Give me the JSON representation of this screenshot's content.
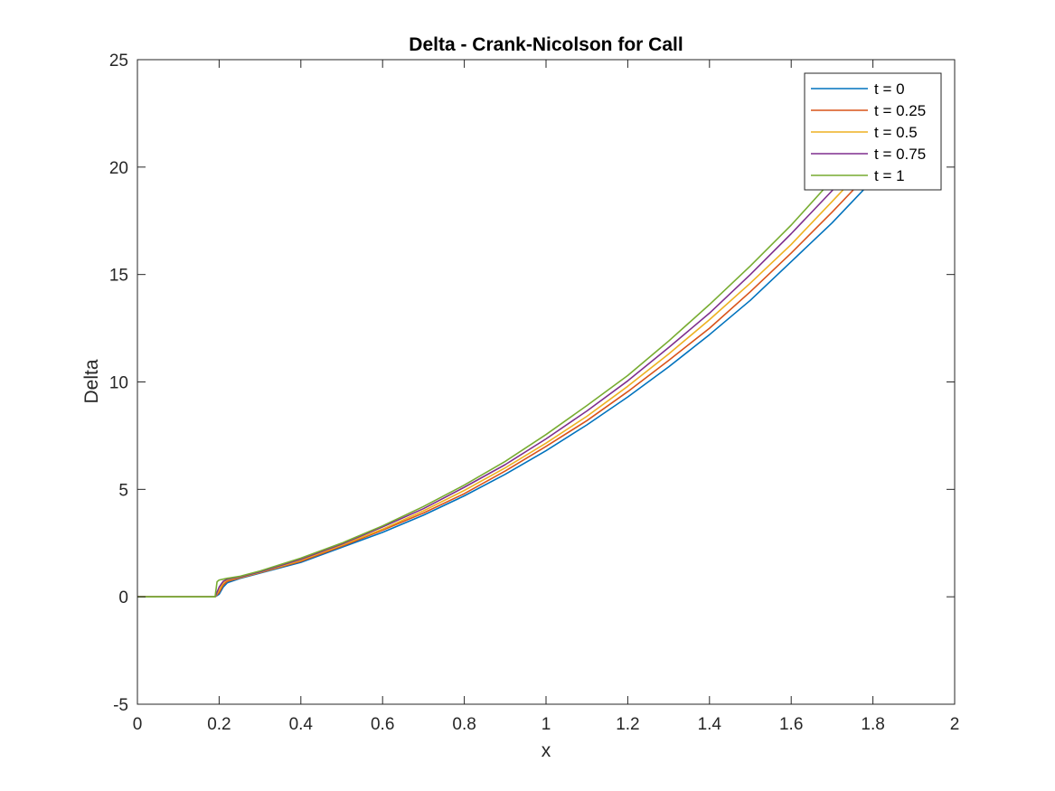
{
  "chart_data": {
    "type": "line",
    "title": "Delta - Crank-Nicolson for Call",
    "xlabel": "x",
    "ylabel": "Delta",
    "xlim": [
      0,
      2
    ],
    "ylim": [
      -5,
      25
    ],
    "xticks": [
      0,
      0.2,
      0.4,
      0.6,
      0.8,
      1,
      1.2,
      1.4,
      1.6,
      1.8,
      2
    ],
    "xtick_labels": [
      "0",
      "0.2",
      "0.4",
      "0.6",
      "0.8",
      "1",
      "1.2",
      "1.4",
      "1.6",
      "1.8",
      "2"
    ],
    "yticks": [
      -5,
      0,
      5,
      10,
      15,
      20,
      25
    ],
    "ytick_labels": [
      "-5",
      "0",
      "5",
      "10",
      "15",
      "20",
      "25"
    ],
    "grid": false,
    "legend_position": "top-right",
    "series": [
      {
        "name": "t = 0",
        "color": "#0072BD",
        "x": [
          0,
          0.19,
          0.2,
          0.21,
          0.22,
          0.25,
          0.3,
          0.4,
          0.5,
          0.6,
          0.7,
          0.8,
          0.9,
          1.0,
          1.1,
          1.2,
          1.3,
          1.4,
          1.5,
          1.6,
          1.7,
          1.8,
          1.81
        ],
        "y": [
          0,
          0,
          0.12,
          0.45,
          0.65,
          0.85,
          1.1,
          1.6,
          2.3,
          3.0,
          3.8,
          4.7,
          5.7,
          6.8,
          8.0,
          9.3,
          10.7,
          12.2,
          13.8,
          15.6,
          17.4,
          19.4,
          19.6
        ]
      },
      {
        "name": "t = 0.25",
        "color": "#D95319",
        "x": [
          0,
          0.19,
          0.2,
          0.21,
          0.22,
          0.25,
          0.3,
          0.4,
          0.5,
          0.6,
          0.7,
          0.8,
          0.9,
          1.0,
          1.1,
          1.2,
          1.3,
          1.4,
          1.5,
          1.6,
          1.7,
          1.79
        ],
        "y": [
          0,
          0,
          0.2,
          0.55,
          0.72,
          0.88,
          1.12,
          1.65,
          2.35,
          3.1,
          3.9,
          4.8,
          5.85,
          7.0,
          8.2,
          9.55,
          11.0,
          12.5,
          14.2,
          16.0,
          17.9,
          19.7
        ]
      },
      {
        "name": "t = 0.5",
        "color": "#EDB120",
        "x": [
          0,
          0.19,
          0.2,
          0.21,
          0.22,
          0.25,
          0.3,
          0.4,
          0.5,
          0.6,
          0.7,
          0.8,
          0.9,
          1.0,
          1.1,
          1.2,
          1.3,
          1.4,
          1.5,
          1.6,
          1.7,
          1.77
        ],
        "y": [
          0,
          0,
          0.3,
          0.65,
          0.78,
          0.9,
          1.14,
          1.7,
          2.4,
          3.15,
          4.0,
          4.95,
          6.0,
          7.15,
          8.4,
          9.8,
          11.3,
          12.9,
          14.6,
          16.4,
          18.4,
          19.8
        ]
      },
      {
        "name": "t = 0.75",
        "color": "#7E2F8E",
        "x": [
          0,
          0.19,
          0.2,
          0.21,
          0.22,
          0.25,
          0.3,
          0.4,
          0.5,
          0.6,
          0.7,
          0.8,
          0.9,
          1.0,
          1.1,
          1.2,
          1.3,
          1.4,
          1.5,
          1.6,
          1.7,
          1.74
        ],
        "y": [
          0,
          0,
          0.45,
          0.72,
          0.82,
          0.92,
          1.16,
          1.75,
          2.45,
          3.25,
          4.1,
          5.1,
          6.15,
          7.35,
          8.65,
          10.05,
          11.6,
          13.2,
          15.0,
          16.9,
          18.9,
          19.8
        ]
      },
      {
        "name": "t = 1",
        "color": "#77AC30",
        "x": [
          0,
          0.19,
          0.195,
          0.2,
          0.21,
          0.22,
          0.25,
          0.3,
          0.4,
          0.5,
          0.6,
          0.7,
          0.8,
          0.9,
          1.0,
          1.1,
          1.2,
          1.3,
          1.4,
          1.5,
          1.6,
          1.7,
          1.72
        ],
        "y": [
          0,
          0,
          0.7,
          0.78,
          0.82,
          0.86,
          0.95,
          1.2,
          1.8,
          2.5,
          3.3,
          4.2,
          5.2,
          6.3,
          7.55,
          8.9,
          10.3,
          11.9,
          13.6,
          15.4,
          17.3,
          19.4,
          19.8
        ]
      }
    ]
  }
}
